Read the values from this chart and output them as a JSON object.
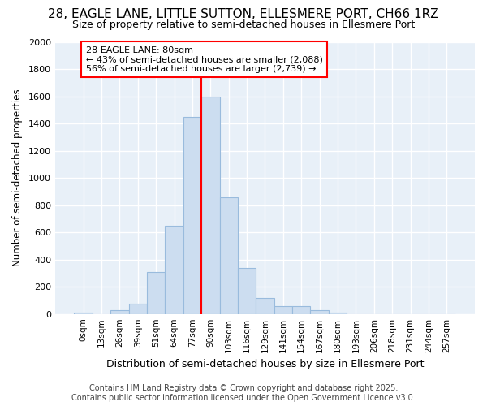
{
  "title1": "28, EAGLE LANE, LITTLE SUTTON, ELLESMERE PORT, CH66 1RZ",
  "title2": "Size of property relative to semi-detached houses in Ellesmere Port",
  "xlabel": "Distribution of semi-detached houses by size in Ellesmere Port",
  "ylabel": "Number of semi-detached properties",
  "footer1": "Contains HM Land Registry data © Crown copyright and database right 2025.",
  "footer2": "Contains public sector information licensed under the Open Government Licence v3.0.",
  "bar_labels": [
    "0sqm",
    "13sqm",
    "26sqm",
    "39sqm",
    "51sqm",
    "64sqm",
    "77sqm",
    "90sqm",
    "103sqm",
    "116sqm",
    "129sqm",
    "141sqm",
    "154sqm",
    "167sqm",
    "180sqm",
    "193sqm",
    "206sqm",
    "218sqm",
    "231sqm",
    "244sqm",
    "257sqm"
  ],
  "bar_values": [
    10,
    0,
    25,
    75,
    310,
    650,
    1450,
    1600,
    860,
    340,
    120,
    60,
    55,
    25,
    10,
    0,
    0,
    0,
    0,
    0,
    0
  ],
  "bar_color": "#ccddf0",
  "bar_edge_color": "#99bbdd",
  "vline_color": "red",
  "vline_x_index": 7,
  "annotation_title": "28 EAGLE LANE: 80sqm",
  "annotation_line1": "← 43% of semi-detached houses are smaller (2,088)",
  "annotation_line2": "56% of semi-detached houses are larger (2,739) →",
  "annotation_box_color": "white",
  "annotation_border_color": "red",
  "ylim": [
    0,
    2000
  ],
  "yticks": [
    0,
    200,
    400,
    600,
    800,
    1000,
    1200,
    1400,
    1600,
    1800,
    2000
  ],
  "bg_color": "#ffffff",
  "plot_bg_color": "#e8f0f8",
  "title_fontsize": 11,
  "subtitle_fontsize": 9,
  "footer_fontsize": 7
}
